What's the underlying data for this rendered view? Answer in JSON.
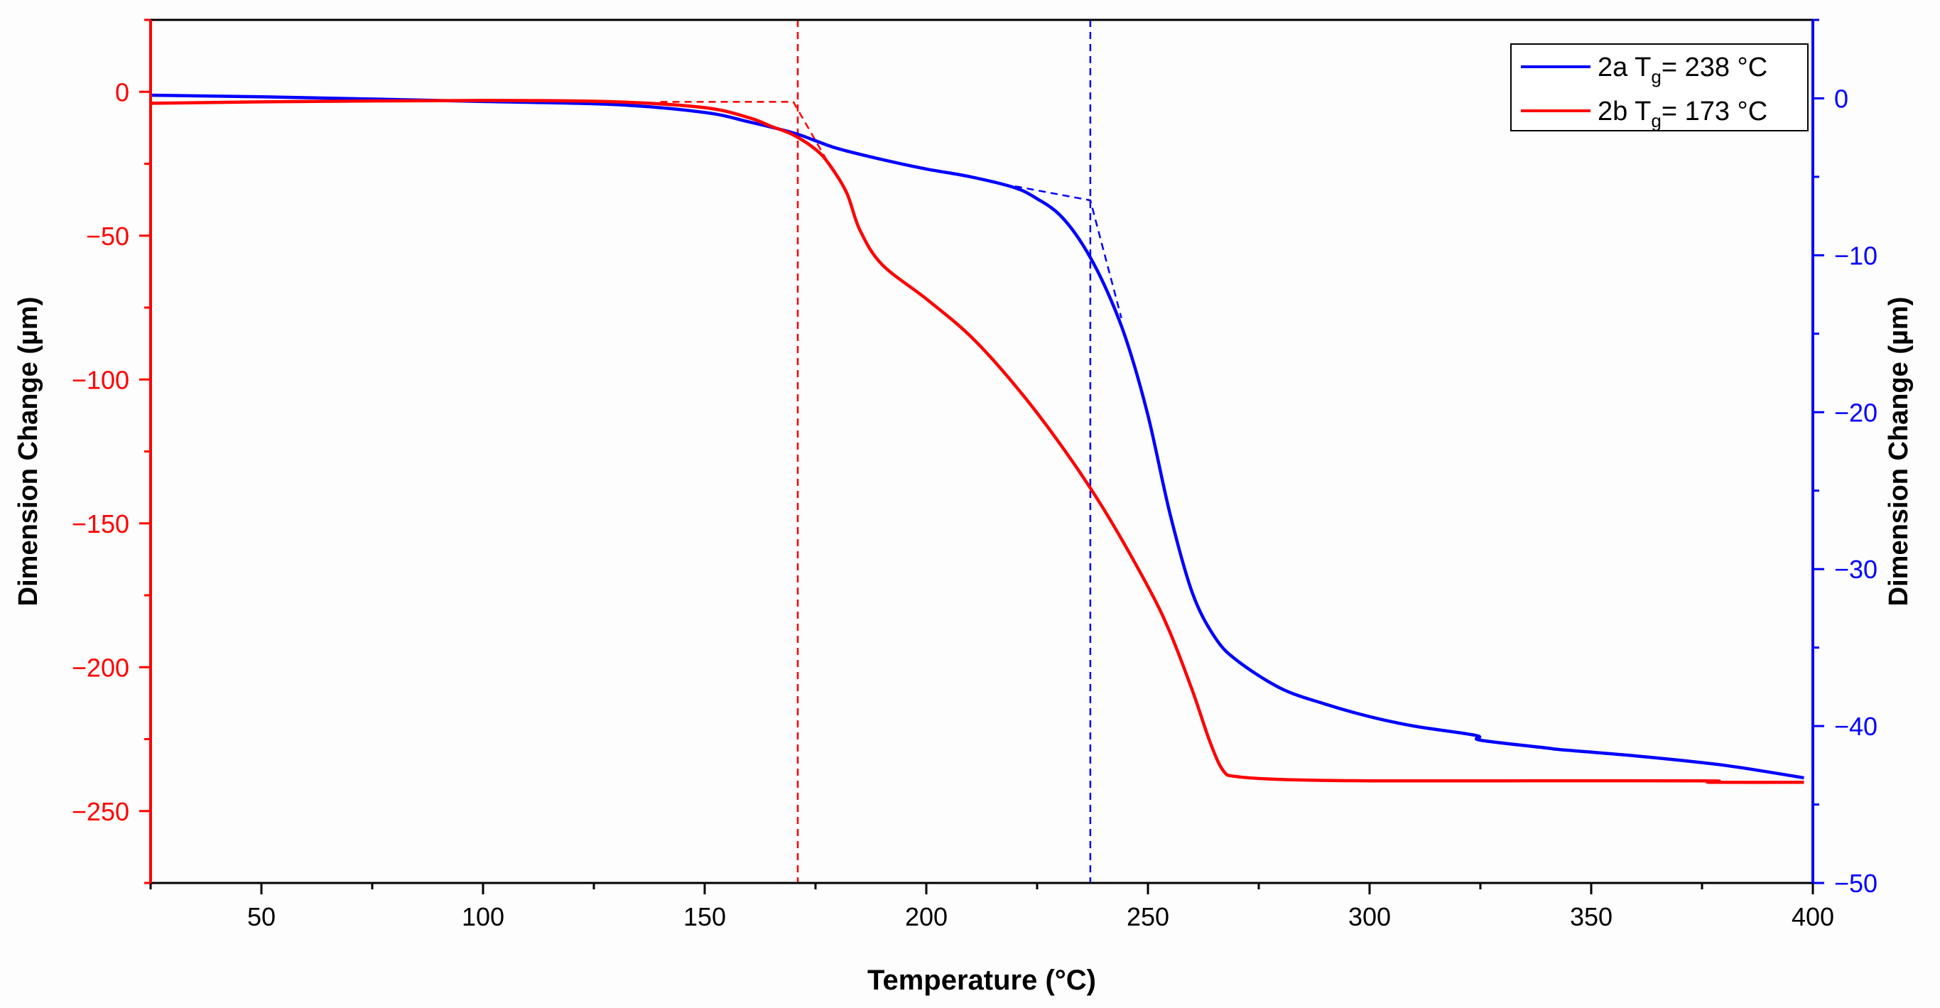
{
  "chart_data": {
    "type": "line",
    "title": "",
    "xlabel": "Temperature (°C)",
    "ylabel_left": "Dimension Change (µm)",
    "ylabel_right": "Dimension Change (µm)",
    "xlim": [
      25,
      400
    ],
    "ylim_left": [
      -275,
      25
    ],
    "ylim_right": [
      -50,
      5
    ],
    "x_ticks": [
      50,
      100,
      150,
      200,
      250,
      300,
      350,
      400
    ],
    "y_left_ticks": [
      0,
      -50,
      -100,
      -150,
      -200,
      -250
    ],
    "y_right_ticks": [
      0,
      -10,
      -20,
      -30,
      -40,
      -50
    ],
    "tick_labels": {
      "x": [
        "50",
        "100",
        "150",
        "200",
        "250",
        "300",
        "350",
        "400"
      ],
      "y_left": [
        "0",
        "−50",
        "−100",
        "−150",
        "−200",
        "−250"
      ],
      "y_right": [
        "0",
        "−10",
        "−20",
        "−30",
        "−40",
        "−50"
      ]
    },
    "colors": {
      "left_axis": "#ff0000",
      "right_axis": "#0000ff",
      "frame": "#000000"
    },
    "legend": {
      "placement": "top-right",
      "entries": [
        {
          "label_pre": "2a T",
          "label_sub": "g",
          "label_post": "= 238 °C",
          "color": "#0000ff"
        },
        {
          "label_pre": "2b T",
          "label_sub": "g",
          "label_post": "= 173 °C",
          "color": "#ff0000"
        }
      ]
    },
    "series": [
      {
        "name": "2a",
        "axis": "right",
        "color": "#0000ff",
        "x": [
          25,
          50,
          100,
          130,
          150,
          160,
          170,
          175,
          180,
          190,
          200,
          210,
          220,
          225,
          230,
          235,
          240,
          245,
          250,
          255,
          260,
          265,
          270,
          280,
          290,
          300,
          310,
          324,
          325,
          340,
          343,
          360,
          380,
          398
        ],
        "y": [
          0.2,
          0.1,
          -0.2,
          -0.4,
          -0.9,
          -1.5,
          -2.2,
          -2.7,
          -3.2,
          -3.9,
          -4.5,
          -5.0,
          -5.7,
          -6.4,
          -7.4,
          -9.2,
          -11.8,
          -15.3,
          -20.2,
          -26.5,
          -31.5,
          -34.3,
          -35.8,
          -37.6,
          -38.6,
          -39.4,
          -40.0,
          -40.6,
          -40.9,
          -41.4,
          -41.5,
          -41.9,
          -42.5,
          -43.3
        ]
      },
      {
        "name": "2b",
        "axis": "left",
        "color": "#ff0000",
        "x": [
          25,
          50,
          100,
          130,
          150,
          160,
          165,
          170,
          175,
          178,
          182,
          185,
          190,
          200,
          210,
          220,
          230,
          240,
          250,
          255,
          260,
          264,
          267,
          270,
          280,
          300,
          330,
          376,
          377,
          398
        ],
        "y": [
          -4,
          -3.5,
          -3,
          -3.5,
          -5.5,
          -9,
          -12,
          -15,
          -20,
          -25,
          -35,
          -48,
          -60,
          -72,
          -85,
          -102,
          -122,
          -145,
          -172,
          -188,
          -208,
          -226,
          -236,
          -238,
          -239,
          -239.5,
          -239.5,
          -239.5,
          -240,
          -240
        ]
      }
    ],
    "annotations": [
      {
        "type": "vertical-dashed",
        "x": 171,
        "color": "#ff0000"
      },
      {
        "type": "vertical-dashed",
        "x": 237,
        "color": "#0000ff"
      },
      {
        "type": "tangent-dashed",
        "axis": "left",
        "color": "#ff0000",
        "x": [
          140,
          170,
          178
        ],
        "y": [
          -3.5,
          -3.5,
          -25
        ]
      },
      {
        "type": "tangent-dashed",
        "axis": "right",
        "color": "#0000ff",
        "x": [
          220,
          237,
          244
        ],
        "y": [
          -5.6,
          -6.5,
          -14
        ]
      }
    ]
  }
}
